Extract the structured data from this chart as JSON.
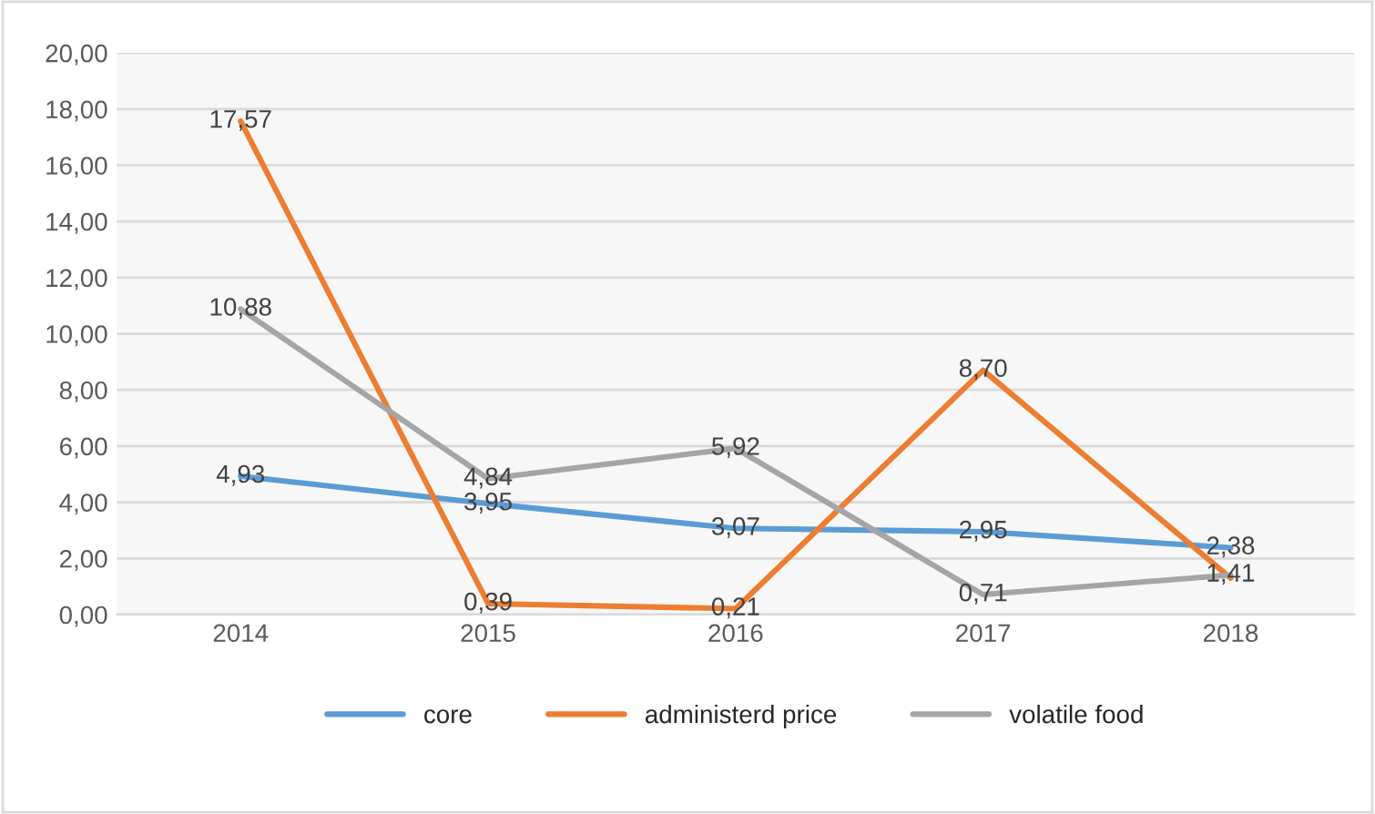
{
  "chart_data": {
    "type": "line",
    "categories": [
      "2014",
      "2015",
      "2016",
      "2017",
      "2018"
    ],
    "series": [
      {
        "name": "core",
        "color": "#5b9bd5",
        "values": [
          4.93,
          3.95,
          3.07,
          2.95,
          2.38
        ],
        "value_labels": [
          "4,93",
          "3,95",
          "3,07",
          "2,95",
          "2,38"
        ]
      },
      {
        "name": "administerd price",
        "color": "#ed7d31",
        "values": [
          17.57,
          0.39,
          0.21,
          8.7,
          1.3
        ],
        "value_labels": [
          "17,57",
          "0,39",
          "0,21",
          "8,70",
          null
        ]
      },
      {
        "name": "volatile food",
        "color": "#a5a5a5",
        "values": [
          10.88,
          4.84,
          5.92,
          0.71,
          1.41
        ],
        "value_labels": [
          "10,88",
          "4,84",
          "5,92",
          "0,71",
          "1,41"
        ]
      }
    ],
    "ylim": [
      0,
      20
    ],
    "yticks": [
      {
        "value": 0,
        "label": "0,00"
      },
      {
        "value": 2,
        "label": "2,00"
      },
      {
        "value": 4,
        "label": "4,00"
      },
      {
        "value": 6,
        "label": "6,00"
      },
      {
        "value": 8,
        "label": "8,00"
      },
      {
        "value": 10,
        "label": "10,00"
      },
      {
        "value": 12,
        "label": "12,00"
      },
      {
        "value": 14,
        "label": "14,00"
      },
      {
        "value": 16,
        "label": "16,00"
      },
      {
        "value": 18,
        "label": "18,00"
      },
      {
        "value": 20,
        "label": "20,00"
      }
    ],
    "grid": "y",
    "legend": "bottom",
    "marker": "none",
    "line_style": "solid"
  }
}
